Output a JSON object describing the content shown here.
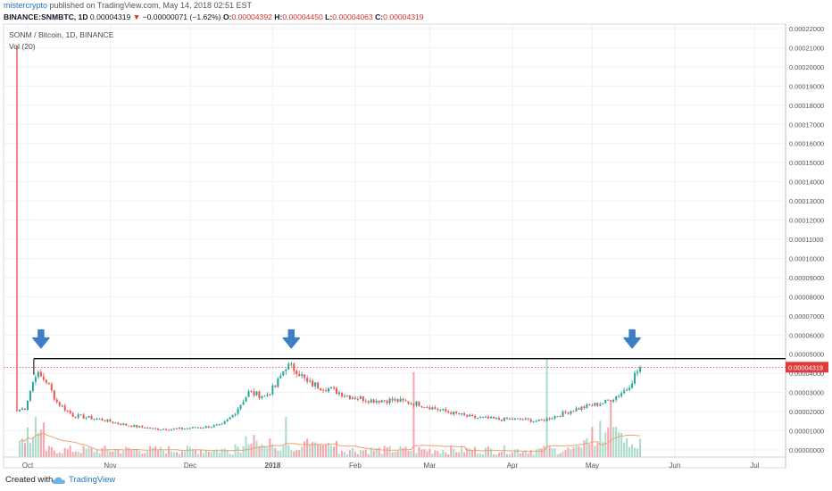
{
  "header": {
    "user": "mistercrypto",
    "published_text": "published on TradingView.com, May 14, 2018 02:51 EST",
    "symbol": "BINANCE:SNMBTC, 1D",
    "last": "0.00004319",
    "change_arrow": "▼",
    "change": "−0.00000071 (−1.62%)",
    "o_label": "O:",
    "o_val": "0.00004392",
    "h_label": "H:",
    "h_val": "0.00004450",
    "l_label": "L:",
    "l_val": "0.00004063",
    "c_label": "C:",
    "c_val": "0.00004319"
  },
  "legend": {
    "title": "SONM / Bitcoin, 1D, BINANCE",
    "volume": "Vol (20)"
  },
  "footer": {
    "created": "Created with",
    "brand": "TradingView"
  },
  "colors": {
    "up": "#26a69a",
    "down": "#ef5350",
    "vol_up": "#a8dccb",
    "vol_down": "#f5a3ad",
    "arrow": "#3d7ec4",
    "resistance": "#000000",
    "price_line": "#e03a3a",
    "ma": "#f0a070"
  },
  "chart_data": {
    "type": "candlestick",
    "title": "SONM / Bitcoin, 1D, BINANCE",
    "y_ticks": [
      "0.00022000",
      "0.00021000",
      "0.00020000",
      "0.00019000",
      "0.00018000",
      "0.00017000",
      "0.00016000",
      "0.00015000",
      "0.00014000",
      "0.00013000",
      "0.00012000",
      "0.00011000",
      "0.00010000",
      "0.00009000",
      "0.00008000",
      "0.00007000",
      "0.00006000",
      "0.00005000",
      "0.00004000",
      "0.00003000",
      "0.00002000",
      "0.00001000",
      "0.00000000"
    ],
    "ylim": [
      0,
      0.000225
    ],
    "x_ticks": [
      "Oct",
      "Nov",
      "Dec",
      "2018",
      "Feb",
      "Mar",
      "Apr",
      "May",
      "Jun",
      "Jul"
    ],
    "last_price_label": "0.00004319",
    "last_price": 4.319e-05,
    "resistance_level": 4.77e-05,
    "grid": true,
    "legend_position": "top-left",
    "series": [
      {
        "name": "Price",
        "close_points": [
          [
            0,
            2.1e-05
          ],
          [
            2,
            2.2e-05
          ],
          [
            6,
            4e-05
          ],
          [
            10,
            3.6e-05
          ],
          [
            14,
            2.5e-05
          ],
          [
            20,
            1.8e-05
          ],
          [
            30,
            1.6e-05
          ],
          [
            40,
            1.3e-05
          ],
          [
            50,
            1.1e-05
          ],
          [
            60,
            1.1e-05
          ],
          [
            70,
            1.2e-05
          ],
          [
            76,
            1.3e-05
          ],
          [
            80,
            1.8e-05
          ],
          [
            86,
            3e-05
          ],
          [
            92,
            2.8e-05
          ],
          [
            96,
            3.3e-05
          ],
          [
            100,
            4.4e-05
          ],
          [
            104,
            4.2e-05
          ],
          [
            108,
            3.5e-05
          ],
          [
            116,
            3.2e-05
          ],
          [
            124,
            2.8e-05
          ],
          [
            132,
            2.6e-05
          ],
          [
            140,
            2.6e-05
          ],
          [
            150,
            2.4e-05
          ],
          [
            160,
            2e-05
          ],
          [
            170,
            1.7e-05
          ],
          [
            180,
            1.6e-05
          ],
          [
            188,
            1.6e-05
          ],
          [
            195,
            1.5e-05
          ],
          [
            200,
            1.7e-05
          ],
          [
            208,
            2.1e-05
          ],
          [
            214,
            2.3e-05
          ],
          [
            220,
            2.5e-05
          ],
          [
            224,
            2.8e-05
          ],
          [
            228,
            3.2e-05
          ],
          [
            231,
            3.9e-05
          ],
          [
            233,
            4.32e-05
          ]
        ]
      },
      {
        "name": "Vol (20)",
        "spike_days": [
          6,
          100,
          148,
          198,
          222
        ]
      }
    ],
    "annotations": [
      {
        "type": "arrow-down",
        "day": 6
      },
      {
        "type": "arrow-down",
        "day": 100
      },
      {
        "type": "arrow-down",
        "day": 228
      }
    ]
  }
}
